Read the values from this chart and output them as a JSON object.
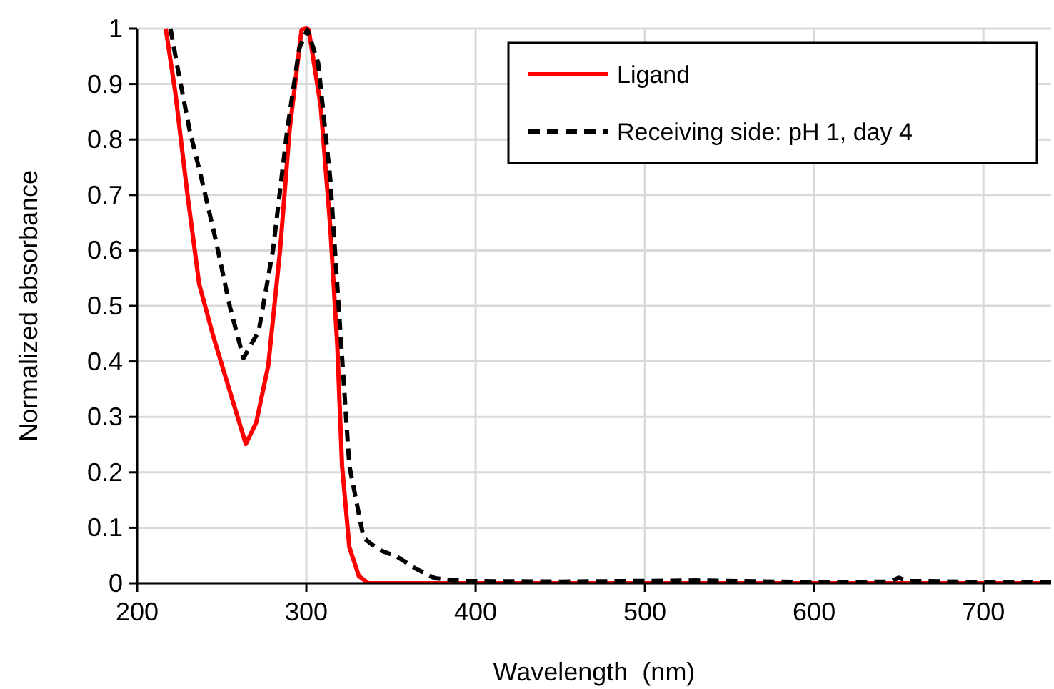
{
  "chart_data": {
    "type": "line",
    "xlabel": "Wavelength  (nm)",
    "ylabel": "Normalized absorbance",
    "xlim": [
      200,
      740
    ],
    "ylim": [
      0,
      1
    ],
    "xticks": [
      200,
      300,
      400,
      500,
      600,
      700
    ],
    "yticks": [
      0,
      0.1,
      0.2,
      0.3,
      0.4,
      0.5,
      0.6,
      0.7,
      0.8,
      0.9,
      1
    ],
    "grid": true,
    "legend": "top right",
    "series": [
      {
        "name": "Ligand",
        "color": "#ff0000",
        "line_style": "solid",
        "x": [
          216.9,
          222.5,
          229.6,
          236.6,
          245,
          253.5,
          264.2,
          270.4,
          277.5,
          284.5,
          290.1,
          297.2,
          300,
          301.4,
          308.5,
          314.1,
          318.3,
          321.1,
          325.4,
          331,
          336.6,
          400,
          500,
          600,
          700,
          740
        ],
        "values": [
          1.0,
          0.886,
          0.704,
          0.54,
          0.445,
          0.359,
          0.251,
          0.29,
          0.393,
          0.601,
          0.817,
          0.998,
          1.0,
          0.998,
          0.86,
          0.644,
          0.428,
          0.212,
          0.065,
          0.013,
          0.0,
          0.0,
          0.0,
          0.0,
          0.0,
          0.0
        ]
      },
      {
        "name": "Receiving side: pH 1, day 4",
        "color": "#000000",
        "line_style": "dashed",
        "x": [
          219.7,
          223.9,
          231,
          238,
          246.5,
          254.9,
          262.8,
          271.8,
          280.3,
          288.7,
          295.8,
          300.6,
          307,
          314.1,
          319.7,
          325.4,
          333.8,
          342.3,
          353.5,
          364.8,
          376,
          393,
          450,
          530,
          600,
          645,
          650,
          655,
          665,
          700,
          740
        ],
        "values": [
          1.0,
          0.929,
          0.817,
          0.73,
          0.618,
          0.497,
          0.406,
          0.454,
          0.601,
          0.817,
          0.964,
          0.998,
          0.938,
          0.73,
          0.471,
          0.212,
          0.082,
          0.061,
          0.048,
          0.026,
          0.009,
          0.004,
          0.003,
          0.005,
          0.002,
          0.003,
          0.01,
          0.004,
          0.004,
          0.002,
          0.002
        ]
      }
    ]
  }
}
